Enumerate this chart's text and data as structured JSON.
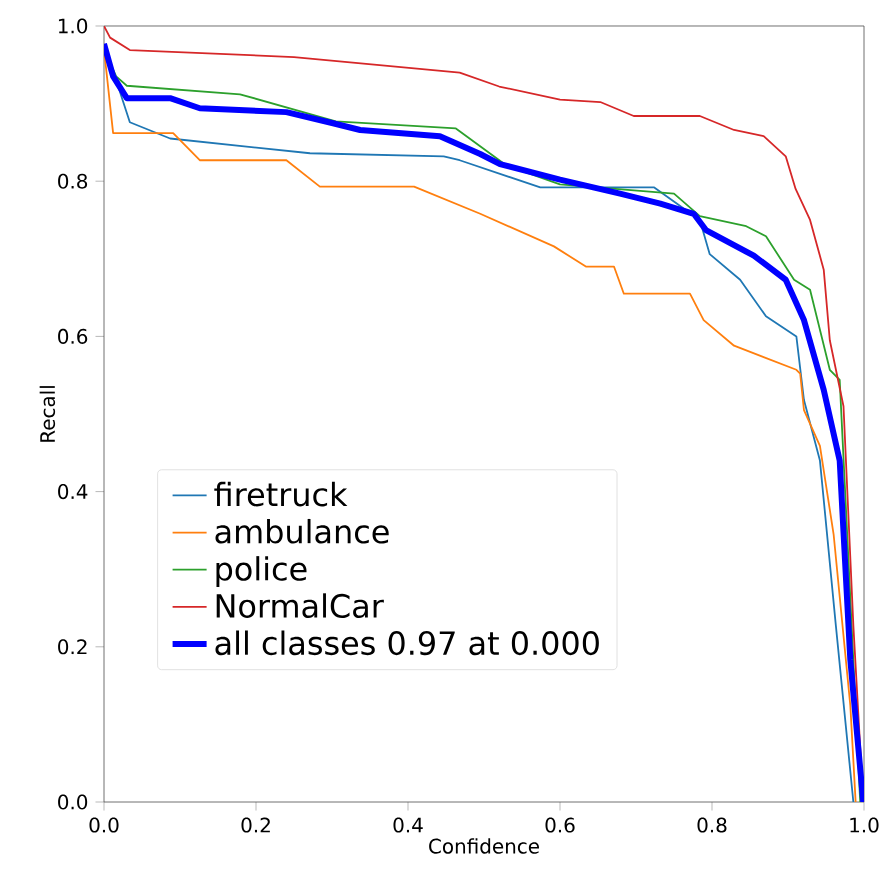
{
  "chart_data": {
    "type": "line",
    "xlabel": "Confidence",
    "ylabel": "Recall",
    "xlim": [
      0,
      1
    ],
    "ylim": [
      0,
      1
    ],
    "xticks": [
      {
        "value": 0,
        "label": "0.0"
      },
      0.2,
      0.4,
      0.6,
      0.8,
      {
        "value": 1,
        "label": "1.0"
      }
    ],
    "yticks": [
      {
        "value": 0,
        "label": "0.0"
      },
      0.2,
      0.4,
      0.6,
      0.8,
      {
        "value": 1,
        "label": "1.0"
      }
    ],
    "legend": "bottom left",
    "grid": false,
    "marker": "none",
    "series": [
      {
        "name": "firetruck",
        "color": "#1f77b4",
        "x": [
          0,
          0.016,
          0.034,
          0.087,
          0.271,
          0.447,
          0.468,
          0.574,
          0.724,
          0.784,
          0.797,
          0.837,
          0.871,
          0.911,
          0.921,
          0.942,
          0.963,
          0.986
        ],
        "values": [
          0.97,
          0.93,
          0.876,
          0.855,
          0.836,
          0.832,
          0.827,
          0.792,
          0.792,
          0.75,
          0.706,
          0.673,
          0.626,
          0.6,
          0.518,
          0.44,
          0.227,
          0
        ]
      },
      {
        "name": "ambulance",
        "color": "#ff7f0e",
        "x": [
          0,
          0.012,
          0.091,
          0.126,
          0.24,
          0.284,
          0.408,
          0.495,
          0.592,
          0.634,
          0.671,
          0.684,
          0.771,
          0.789,
          0.829,
          0.911,
          0.916,
          0.921,
          0.942,
          0.96,
          0.982,
          0.989
        ],
        "values": [
          0.97,
          0.862,
          0.862,
          0.827,
          0.827,
          0.793,
          0.793,
          0.758,
          0.716,
          0.69,
          0.69,
          0.655,
          0.655,
          0.621,
          0.588,
          0.557,
          0.552,
          0.505,
          0.459,
          0.345,
          0.124,
          0
        ]
      },
      {
        "name": "police",
        "color": "#2ca02c",
        "x": [
          0,
          0.016,
          0.03,
          0.179,
          0.305,
          0.463,
          0.53,
          0.6,
          0.75,
          0.784,
          0.845,
          0.871,
          0.908,
          0.929,
          0.955,
          0.968,
          0.995
        ],
        "values": [
          0.97,
          0.935,
          0.923,
          0.912,
          0.877,
          0.868,
          0.82,
          0.796,
          0.784,
          0.755,
          0.742,
          0.729,
          0.673,
          0.66,
          0.557,
          0.544,
          0
        ]
      },
      {
        "name": "NormalCar",
        "color": "#d62728",
        "x": [
          0,
          0.008,
          0.034,
          0.25,
          0.468,
          0.52,
          0.6,
          0.653,
          0.697,
          0.784,
          0.829,
          0.868,
          0.897,
          0.91,
          0.929,
          0.947,
          0.955,
          0.973,
          0.986,
          0.999
        ],
        "values": [
          1.0,
          0.985,
          0.969,
          0.96,
          0.94,
          0.922,
          0.905,
          0.902,
          0.884,
          0.884,
          0.866,
          0.858,
          0.832,
          0.79,
          0.75,
          0.686,
          0.595,
          0.51,
          0.227,
          0
        ]
      },
      {
        "name": "all classes 0.97 at 0.000",
        "color": "#0000ff",
        "x": [
          0,
          0.012,
          0.03,
          0.087,
          0.126,
          0.24,
          0.3,
          0.337,
          0.442,
          0.495,
          0.521,
          0.6,
          0.679,
          0.732,
          0.776,
          0.792,
          0.855,
          0.897,
          0.921,
          0.947,
          0.968,
          0.982,
          0.999
        ],
        "values": [
          0.977,
          0.935,
          0.907,
          0.907,
          0.894,
          0.889,
          0.875,
          0.866,
          0.858,
          0.835,
          0.822,
          0.802,
          0.784,
          0.771,
          0.758,
          0.737,
          0.704,
          0.673,
          0.621,
          0.531,
          0.44,
          0.183,
          0
        ]
      }
    ]
  }
}
